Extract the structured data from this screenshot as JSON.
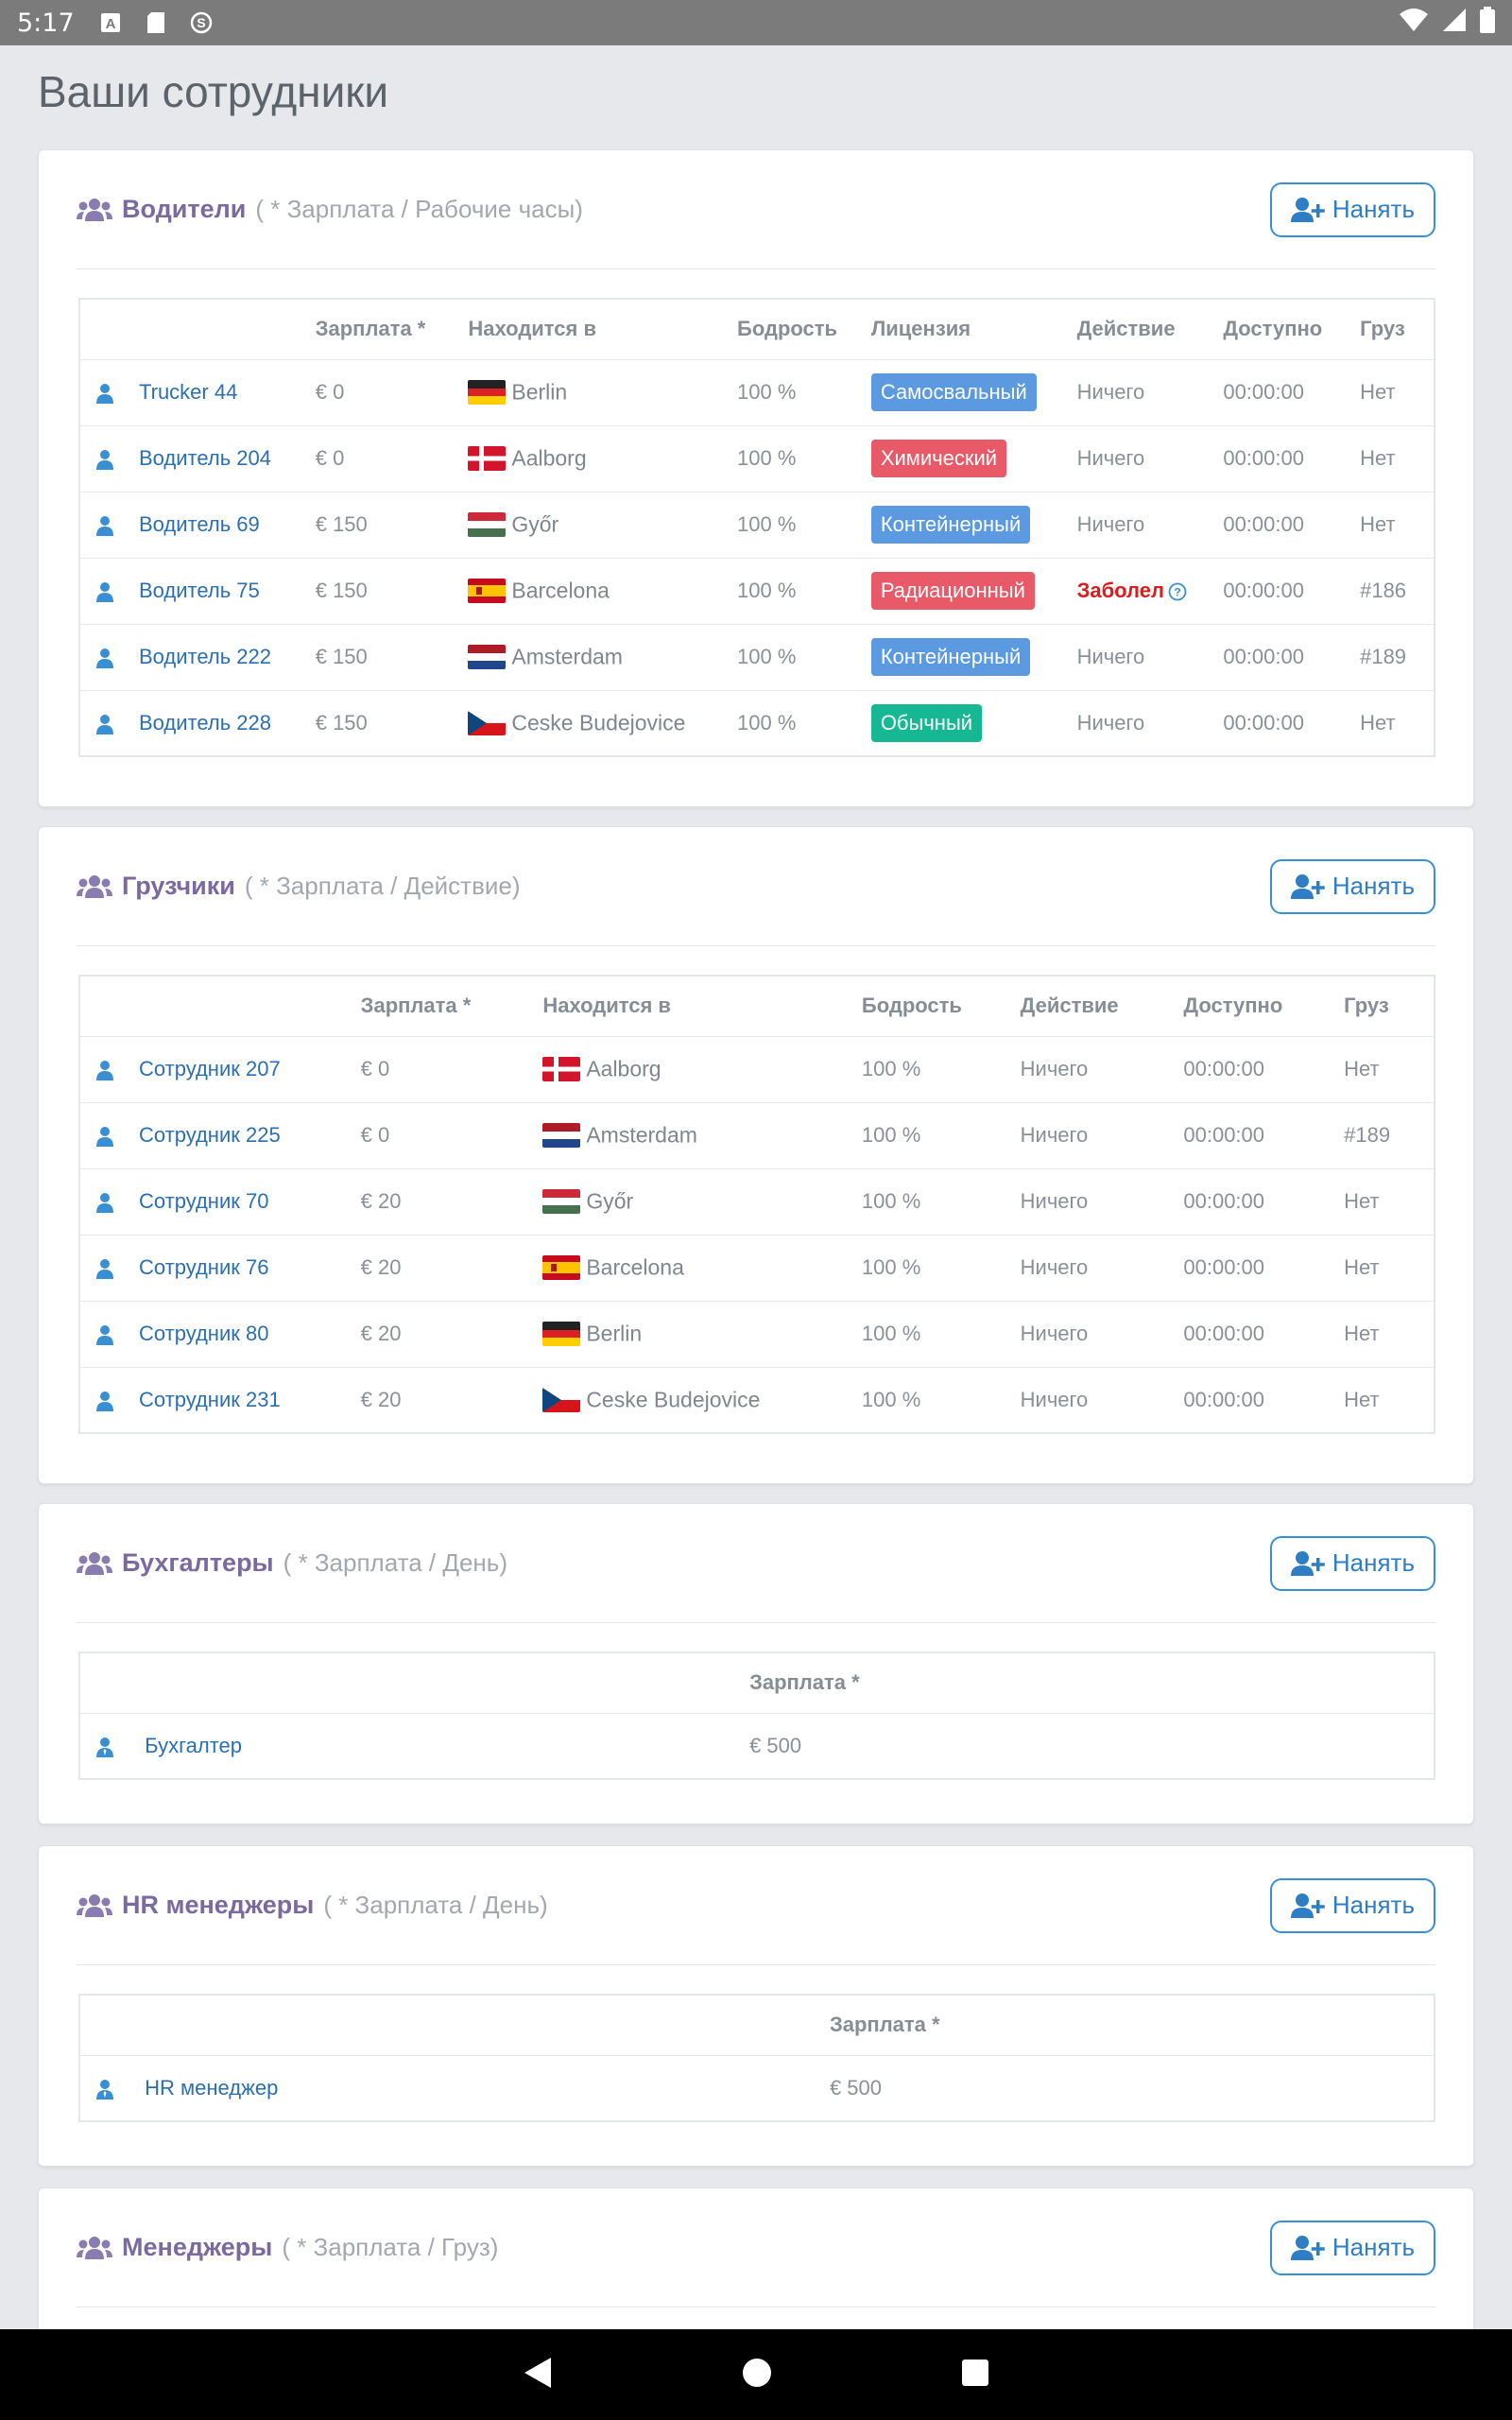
{
  "status_bar": {
    "time": "5:17"
  },
  "page_title": "Ваши сотрудники",
  "hire_label": "Нанять",
  "colors": {
    "label_truck": "#5b9ae0",
    "label_red": "#e85a67",
    "label_green": "#16b894",
    "title_purple": "#7b6aa0",
    "link_blue": "#2c6fb0",
    "sick_red": "#e01b1b"
  },
  "drivers": {
    "title": "Водители",
    "subtitle": "( * Зарплата / Рабочие часы)",
    "headers": [
      "",
      "Зарплата *",
      "Находится в",
      "Бодрость",
      "Лицензия",
      "Действие",
      "Доступно",
      "Груз"
    ],
    "rows": [
      {
        "name": "Trucker 44",
        "salary": "€ 0",
        "flag": "de",
        "city": "Berlin",
        "vigor": "100 %",
        "license": "Самосвальный",
        "license_color": "blue",
        "action": "Ничего",
        "available": "00:00:00",
        "cargo": "Нет"
      },
      {
        "name": "Водитель 204",
        "salary": "€ 0",
        "flag": "dk",
        "city": "Aalborg",
        "vigor": "100 %",
        "license": "Химический",
        "license_color": "red",
        "action": "Ничего",
        "available": "00:00:00",
        "cargo": "Нет"
      },
      {
        "name": "Водитель 69",
        "salary": "€ 150",
        "flag": "hu",
        "city": "Győr",
        "vigor": "100 %",
        "license": "Контейнерный",
        "license_color": "blue",
        "action": "Ничего",
        "available": "00:00:00",
        "cargo": "Нет"
      },
      {
        "name": "Водитель 75",
        "salary": "€ 150",
        "flag": "es",
        "city": "Barcelona",
        "vigor": "100 %",
        "license": "Радиационный",
        "license_color": "red",
        "action": "Заболел",
        "action_sick": true,
        "available": "00:00:00",
        "cargo": "#186"
      },
      {
        "name": "Водитель 222",
        "salary": "€ 150",
        "flag": "nl",
        "city": "Amsterdam",
        "vigor": "100 %",
        "license": "Контейнерный",
        "license_color": "blue",
        "action": "Ничего",
        "available": "00:00:00",
        "cargo": "#189"
      },
      {
        "name": "Водитель 228",
        "salary": "€ 150",
        "flag": "cz",
        "city": "Ceske Budejovice",
        "vigor": "100 %",
        "license": "Обычный",
        "license_color": "green",
        "action": "Ничего",
        "available": "00:00:00",
        "cargo": "Нет"
      }
    ]
  },
  "loaders": {
    "title": "Грузчики",
    "subtitle": "( * Зарплата / Действие)",
    "headers": [
      "",
      "Зарплата *",
      "Находится в",
      "Бодрость",
      "Действие",
      "Доступно",
      "Груз"
    ],
    "rows": [
      {
        "name": "Сотрудник 207",
        "salary": "€ 0",
        "flag": "dk",
        "city": "Aalborg",
        "vigor": "100 %",
        "action": "Ничего",
        "available": "00:00:00",
        "cargo": "Нет"
      },
      {
        "name": "Сотрудник 225",
        "salary": "€ 0",
        "flag": "nl",
        "city": "Amsterdam",
        "vigor": "100 %",
        "action": "Ничего",
        "available": "00:00:00",
        "cargo": "#189"
      },
      {
        "name": "Сотрудник 70",
        "salary": "€ 20",
        "flag": "hu",
        "city": "Győr",
        "vigor": "100 %",
        "action": "Ничего",
        "available": "00:00:00",
        "cargo": "Нет"
      },
      {
        "name": "Сотрудник 76",
        "salary": "€ 20",
        "flag": "es",
        "city": "Barcelona",
        "vigor": "100 %",
        "action": "Ничего",
        "available": "00:00:00",
        "cargo": "Нет"
      },
      {
        "name": "Сотрудник 80",
        "salary": "€ 20",
        "flag": "de",
        "city": "Berlin",
        "vigor": "100 %",
        "action": "Ничего",
        "available": "00:00:00",
        "cargo": "Нет"
      },
      {
        "name": "Сотрудник 231",
        "salary": "€ 20",
        "flag": "cz",
        "city": "Ceske Budejovice",
        "vigor": "100 %",
        "action": "Ничего",
        "available": "00:00:00",
        "cargo": "Нет"
      }
    ]
  },
  "accountants": {
    "title": "Бухгалтеры",
    "subtitle": "( * Зарплата / День)",
    "salary_header": "Зарплата *",
    "rows": [
      {
        "name": "Бухгалтер",
        "salary": "€ 500"
      }
    ]
  },
  "hr": {
    "title": "HR менеджеры",
    "subtitle": "( * Зарплата / День)",
    "salary_header": "Зарплата *",
    "rows": [
      {
        "name": "HR менеджер",
        "salary": "€ 500"
      }
    ]
  },
  "managers": {
    "title": "Менеджеры",
    "subtitle": "( * Зарплата / Груз)"
  }
}
